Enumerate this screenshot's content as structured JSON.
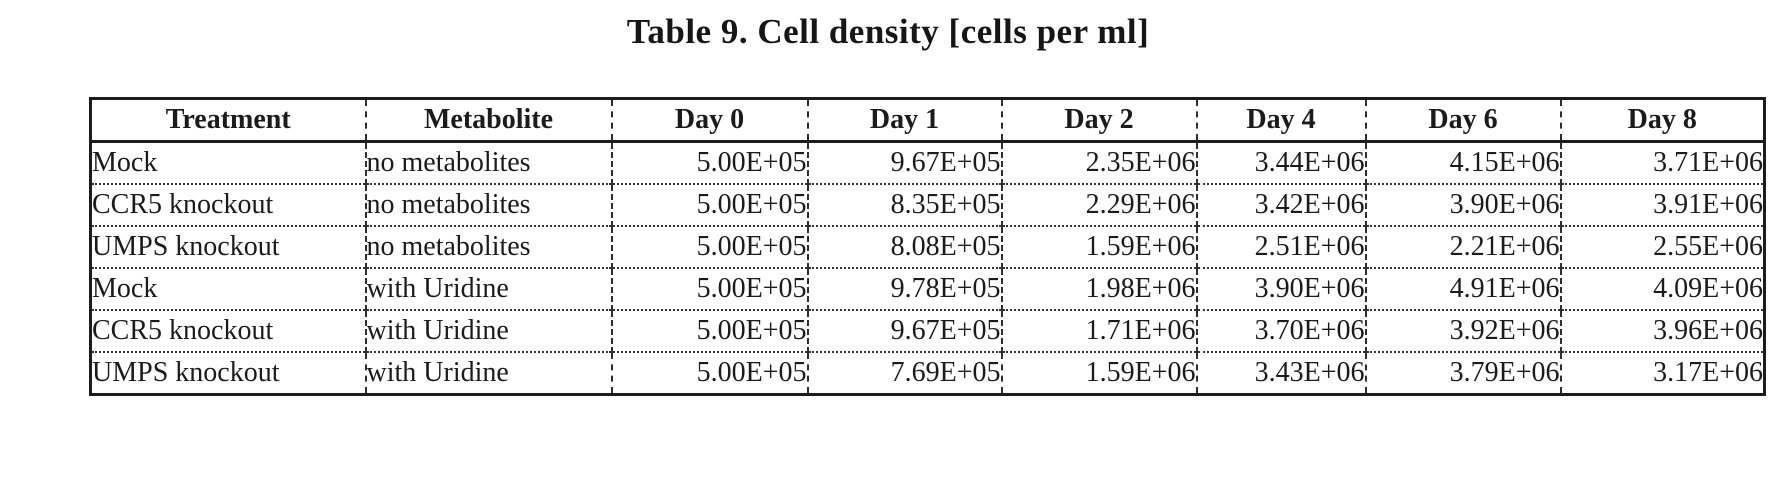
{
  "page": {
    "background": "#ffffff",
    "ink_color": "#1b1b1b",
    "title": "Table 9. Cell density [cells per ml]"
  },
  "chart_data": {
    "type": "table",
    "title": "Table 9. Cell density [cells per ml]",
    "units": "cells per ml",
    "headers": [
      "Treatment",
      "Metabolite",
      "Day 0",
      "Day 1",
      "Day 2",
      "Day 4",
      "Day 6",
      "Day 8"
    ],
    "rows": [
      [
        "Mock",
        "no metabolites",
        "5.00E+05",
        "9.67E+05",
        "2.35E+06",
        "3.44E+06",
        "4.15E+06",
        "3.71E+06"
      ],
      [
        "CCR5 knockout",
        "no metabolites",
        "5.00E+05",
        "8.35E+05",
        "2.29E+06",
        "3.42E+06",
        "3.90E+06",
        "3.91E+06"
      ],
      [
        "UMPS knockout",
        "no metabolites",
        "5.00E+05",
        "8.08E+05",
        "1.59E+06",
        "2.51E+06",
        "2.21E+06",
        "2.55E+06"
      ],
      [
        "Mock",
        "with Uridine",
        "5.00E+05",
        "9.78E+05",
        "1.98E+06",
        "3.90E+06",
        "4.91E+06",
        "4.09E+06"
      ],
      [
        "CCR5 knockout",
        "with Uridine",
        "5.00E+05",
        "9.67E+05",
        "1.71E+06",
        "3.70E+06",
        "3.92E+06",
        "3.96E+06"
      ],
      [
        "UMPS knockout",
        "with Uridine",
        "5.00E+05",
        "7.69E+05",
        "1.59E+06",
        "3.43E+06",
        "3.79E+06",
        "3.17E+06"
      ]
    ]
  }
}
